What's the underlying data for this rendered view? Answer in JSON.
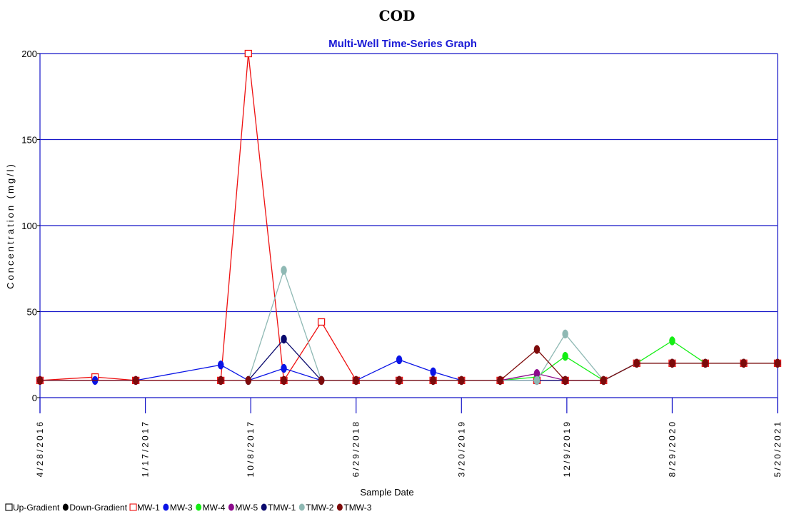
{
  "chart_data": {
    "type": "line",
    "title": "COD",
    "subtitle": "Multi-Well Time-Series Graph",
    "xlabel": "Sample Date",
    "ylabel": "Concentration (mg/l)",
    "ylim": [
      0,
      200
    ],
    "yticks": [
      0,
      50,
      100,
      150,
      200
    ],
    "xlim": [
      "2016-04-28",
      "2021-05-20"
    ],
    "xticks": [
      {
        "date": "2016-04-28",
        "label": "4/28/2016"
      },
      {
        "date": "2017-01-17",
        "label": "1/17/2017"
      },
      {
        "date": "2017-10-08",
        "label": "10/8/2017"
      },
      {
        "date": "2018-06-29",
        "label": "6/29/2018"
      },
      {
        "date": "2019-03-20",
        "label": "3/20/2019"
      },
      {
        "date": "2019-12-09",
        "label": "12/9/2019"
      },
      {
        "date": "2020-08-29",
        "label": "8/29/2020"
      },
      {
        "date": "2021-05-20",
        "label": "5/20/2021"
      }
    ],
    "grid": "horizontal",
    "legend_position": "bottom-left",
    "colors": {
      "axis": "#1515c8",
      "grid": "#1515c8"
    },
    "legend": [
      {
        "label": "Up-Gradient",
        "marker": "square-open",
        "color": "#000000"
      },
      {
        "label": "Down-Gradient",
        "marker": "circle",
        "color": "#000000"
      },
      {
        "label": "MW-1",
        "marker": "square-open",
        "color": "#ee1111"
      },
      {
        "label": "MW-3",
        "marker": "circle",
        "color": "#0a14e6"
      },
      {
        "label": "MW-4",
        "marker": "circle",
        "color": "#14ee14"
      },
      {
        "label": "MW-5",
        "marker": "circle",
        "color": "#8c0a8c"
      },
      {
        "label": "TMW-1",
        "marker": "circle",
        "color": "#0a0a6e"
      },
      {
        "label": "TMW-2",
        "marker": "circle",
        "color": "#8fb9b4"
      },
      {
        "label": "TMW-3",
        "marker": "circle",
        "color": "#7d0a0a"
      }
    ],
    "series": [
      {
        "name": "MW-1",
        "color": "#ee1111",
        "marker": "square-open",
        "points": [
          {
            "x": "2016-04-28",
            "y": 10
          },
          {
            "x": "2016-09-13",
            "y": 12
          },
          {
            "x": "2016-12-24",
            "y": 10
          },
          {
            "x": "2017-07-25",
            "y": 10
          },
          {
            "x": "2017-10-02",
            "y": 200
          },
          {
            "x": "2017-12-30",
            "y": 10
          },
          {
            "x": "2018-04-03",
            "y": 44
          },
          {
            "x": "2018-06-29",
            "y": 10
          },
          {
            "x": "2018-10-15",
            "y": 10
          },
          {
            "x": "2019-01-08",
            "y": 10
          },
          {
            "x": "2019-03-20",
            "y": 10
          },
          {
            "x": "2019-06-25",
            "y": 10
          },
          {
            "x": "2019-09-25",
            "y": 10
          },
          {
            "x": "2019-12-05",
            "y": 10
          },
          {
            "x": "2020-03-10",
            "y": 10
          },
          {
            "x": "2020-06-01",
            "y": 20
          },
          {
            "x": "2020-08-29",
            "y": 20
          },
          {
            "x": "2020-11-20",
            "y": 20
          },
          {
            "x": "2021-02-24",
            "y": 20
          },
          {
            "x": "2021-05-20",
            "y": 20
          }
        ]
      },
      {
        "name": "MW-3",
        "color": "#0a14e6",
        "marker": "circle",
        "points": [
          {
            "x": "2016-04-28",
            "y": 10
          },
          {
            "x": "2016-09-13",
            "y": 10
          },
          {
            "x": "2016-12-24",
            "y": 10
          },
          {
            "x": "2017-07-25",
            "y": 19
          },
          {
            "x": "2017-10-02",
            "y": 10
          },
          {
            "x": "2017-12-30",
            "y": 17
          },
          {
            "x": "2018-04-03",
            "y": 10
          },
          {
            "x": "2018-06-29",
            "y": 10
          },
          {
            "x": "2018-10-15",
            "y": 22
          },
          {
            "x": "2019-01-08",
            "y": 15
          },
          {
            "x": "2019-03-20",
            "y": 10
          },
          {
            "x": "2019-06-25",
            "y": 10
          },
          {
            "x": "2019-09-25",
            "y": 10
          },
          {
            "x": "2019-12-05",
            "y": 10
          },
          {
            "x": "2020-03-10",
            "y": 10
          },
          {
            "x": "2020-06-01",
            "y": 20
          },
          {
            "x": "2020-08-29",
            "y": 20
          },
          {
            "x": "2020-11-20",
            "y": 20
          },
          {
            "x": "2021-02-24",
            "y": 20
          },
          {
            "x": "2021-05-20",
            "y": 20
          }
        ]
      },
      {
        "name": "MW-4",
        "color": "#14ee14",
        "marker": "circle",
        "points": [
          {
            "x": "2019-06-25",
            "y": 10
          },
          {
            "x": "2019-09-25",
            "y": 12
          },
          {
            "x": "2019-12-05",
            "y": 24
          },
          {
            "x": "2020-03-10",
            "y": 10
          },
          {
            "x": "2020-06-01",
            "y": 20
          },
          {
            "x": "2020-08-29",
            "y": 33
          },
          {
            "x": "2020-11-20",
            "y": 20
          },
          {
            "x": "2021-02-24",
            "y": 20
          },
          {
            "x": "2021-05-20",
            "y": 20
          }
        ]
      },
      {
        "name": "MW-5",
        "color": "#8c0a8c",
        "marker": "circle",
        "points": [
          {
            "x": "2016-04-28",
            "y": 10
          },
          {
            "x": "2016-12-24",
            "y": 10
          },
          {
            "x": "2017-07-25",
            "y": 10
          },
          {
            "x": "2017-10-02",
            "y": 10
          },
          {
            "x": "2017-12-30",
            "y": 10
          },
          {
            "x": "2018-04-03",
            "y": 10
          },
          {
            "x": "2018-06-29",
            "y": 10
          },
          {
            "x": "2018-10-15",
            "y": 10
          },
          {
            "x": "2019-01-08",
            "y": 10
          },
          {
            "x": "2019-03-20",
            "y": 10
          },
          {
            "x": "2019-06-25",
            "y": 10
          },
          {
            "x": "2019-09-25",
            "y": 14
          },
          {
            "x": "2019-12-05",
            "y": 10
          },
          {
            "x": "2020-03-10",
            "y": 10
          },
          {
            "x": "2020-06-01",
            "y": 20
          },
          {
            "x": "2020-08-29",
            "y": 20
          },
          {
            "x": "2020-11-20",
            "y": 20
          },
          {
            "x": "2021-02-24",
            "y": 20
          },
          {
            "x": "2021-05-20",
            "y": 20
          }
        ]
      },
      {
        "name": "TMW-1",
        "color": "#0a0a6e",
        "marker": "circle",
        "points": [
          {
            "x": "2017-10-02",
            "y": 10
          },
          {
            "x": "2017-12-30",
            "y": 34
          },
          {
            "x": "2018-04-03",
            "y": 10
          },
          {
            "x": "2018-06-29",
            "y": 10
          },
          {
            "x": "2018-10-15",
            "y": 10
          },
          {
            "x": "2019-01-08",
            "y": 10
          },
          {
            "x": "2019-03-20",
            "y": 10
          },
          {
            "x": "2019-06-25",
            "y": 10
          },
          {
            "x": "2019-09-25",
            "y": 10
          },
          {
            "x": "2019-12-05",
            "y": 10
          },
          {
            "x": "2020-03-10",
            "y": 10
          },
          {
            "x": "2020-06-01",
            "y": 20
          },
          {
            "x": "2020-08-29",
            "y": 20
          },
          {
            "x": "2020-11-20",
            "y": 20
          },
          {
            "x": "2021-02-24",
            "y": 20
          },
          {
            "x": "2021-05-20",
            "y": 20
          }
        ]
      },
      {
        "name": "TMW-2",
        "color": "#8fb9b4",
        "marker": "circle",
        "points": [
          {
            "x": "2017-10-02",
            "y": 10
          },
          {
            "x": "2017-12-30",
            "y": 74
          },
          {
            "x": "2018-04-03",
            "y": 10
          },
          {
            "x": "2018-06-29",
            "y": 10
          },
          {
            "x": "2018-10-15",
            "y": 10
          },
          {
            "x": "2019-01-08",
            "y": 10
          },
          {
            "x": "2019-03-20",
            "y": 10
          },
          {
            "x": "2019-06-25",
            "y": 10
          },
          {
            "x": "2019-09-25",
            "y": 10
          },
          {
            "x": "2019-12-05",
            "y": 37
          },
          {
            "x": "2020-03-10",
            "y": 10
          },
          {
            "x": "2020-06-01",
            "y": 20
          },
          {
            "x": "2020-08-29",
            "y": 20
          },
          {
            "x": "2020-11-20",
            "y": 20
          },
          {
            "x": "2021-02-24",
            "y": 20
          },
          {
            "x": "2021-05-20",
            "y": 20
          }
        ]
      },
      {
        "name": "TMW-3",
        "color": "#7d0a0a",
        "marker": "circle",
        "points": [
          {
            "x": "2016-04-28",
            "y": 10
          },
          {
            "x": "2016-12-24",
            "y": 10
          },
          {
            "x": "2017-07-25",
            "y": 10
          },
          {
            "x": "2017-10-02",
            "y": 10
          },
          {
            "x": "2017-12-30",
            "y": 10
          },
          {
            "x": "2018-04-03",
            "y": 10
          },
          {
            "x": "2018-06-29",
            "y": 10
          },
          {
            "x": "2018-10-15",
            "y": 10
          },
          {
            "x": "2019-01-08",
            "y": 10
          },
          {
            "x": "2019-03-20",
            "y": 10
          },
          {
            "x": "2019-06-25",
            "y": 10
          },
          {
            "x": "2019-09-25",
            "y": 28
          },
          {
            "x": "2019-12-05",
            "y": 10
          },
          {
            "x": "2020-03-10",
            "y": 10
          },
          {
            "x": "2020-06-01",
            "y": 20
          },
          {
            "x": "2020-08-29",
            "y": 20
          },
          {
            "x": "2020-11-20",
            "y": 20
          },
          {
            "x": "2021-02-24",
            "y": 20
          },
          {
            "x": "2021-05-20",
            "y": 20
          }
        ]
      }
    ]
  }
}
